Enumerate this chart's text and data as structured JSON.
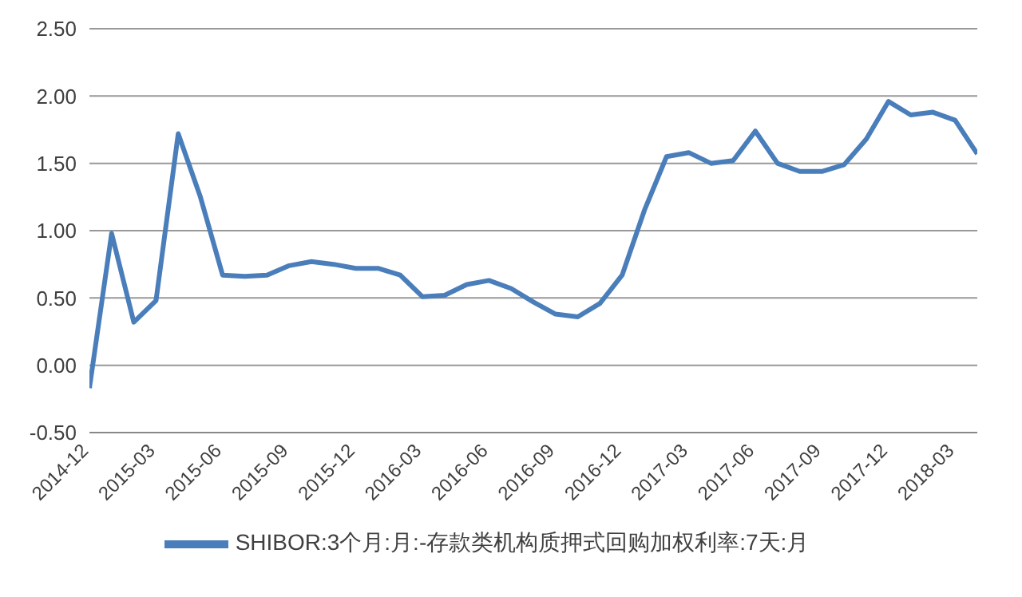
{
  "chart_data": {
    "type": "line",
    "x": [
      "2014-12",
      "2015-01",
      "2015-02",
      "2015-03",
      "2015-04",
      "2015-05",
      "2015-06",
      "2015-07",
      "2015-08",
      "2015-09",
      "2015-10",
      "2015-11",
      "2015-12",
      "2016-01",
      "2016-02",
      "2016-03",
      "2016-04",
      "2016-05",
      "2016-06",
      "2016-07",
      "2016-08",
      "2016-09",
      "2016-10",
      "2016-11",
      "2016-12",
      "2017-01",
      "2017-02",
      "2017-03",
      "2017-04",
      "2017-05",
      "2017-06",
      "2017-07",
      "2017-08",
      "2017-09",
      "2017-10",
      "2017-11",
      "2017-12",
      "2018-01",
      "2018-02",
      "2018-03",
      "2018-04"
    ],
    "series": [
      {
        "name": "SHIBOR:3个月:月:-存款类机构质押式回购加权利率:7天:月",
        "color": "#4a7ebb",
        "values": [
          -0.17,
          0.98,
          0.32,
          0.48,
          1.72,
          1.25,
          0.67,
          0.66,
          0.67,
          0.74,
          0.77,
          0.75,
          0.72,
          0.72,
          0.67,
          0.51,
          0.52,
          0.6,
          0.63,
          0.57,
          0.47,
          0.38,
          0.36,
          0.46,
          0.67,
          1.15,
          1.55,
          1.58,
          1.5,
          1.52,
          1.74,
          1.5,
          1.44,
          1.44,
          1.49,
          1.68,
          1.96,
          1.86,
          1.88,
          1.82,
          1.57
        ]
      }
    ],
    "xlim": [
      "2014-12",
      "2018-04"
    ],
    "xticks": [
      "2014-12",
      "2015-03",
      "2015-06",
      "2015-09",
      "2015-12",
      "2016-03",
      "2016-06",
      "2016-09",
      "2016-12",
      "2017-03",
      "2017-06",
      "2017-09",
      "2017-12",
      "2018-03"
    ],
    "ylim": [
      -0.5,
      2.5
    ],
    "yticks": [
      {
        "value": -0.5,
        "label": "-0.50"
      },
      {
        "value": 0,
        "label": "0.00"
      },
      {
        "value": 0.5,
        "label": "0.50"
      },
      {
        "value": 1,
        "label": "1.00"
      },
      {
        "value": 1.5,
        "label": "1.50"
      },
      {
        "value": 2,
        "label": "2.00"
      },
      {
        "value": 2.5,
        "label": "2.50"
      }
    ],
    "grid": "y",
    "legend": "bottom",
    "marker": "none",
    "line_style": "solid"
  }
}
